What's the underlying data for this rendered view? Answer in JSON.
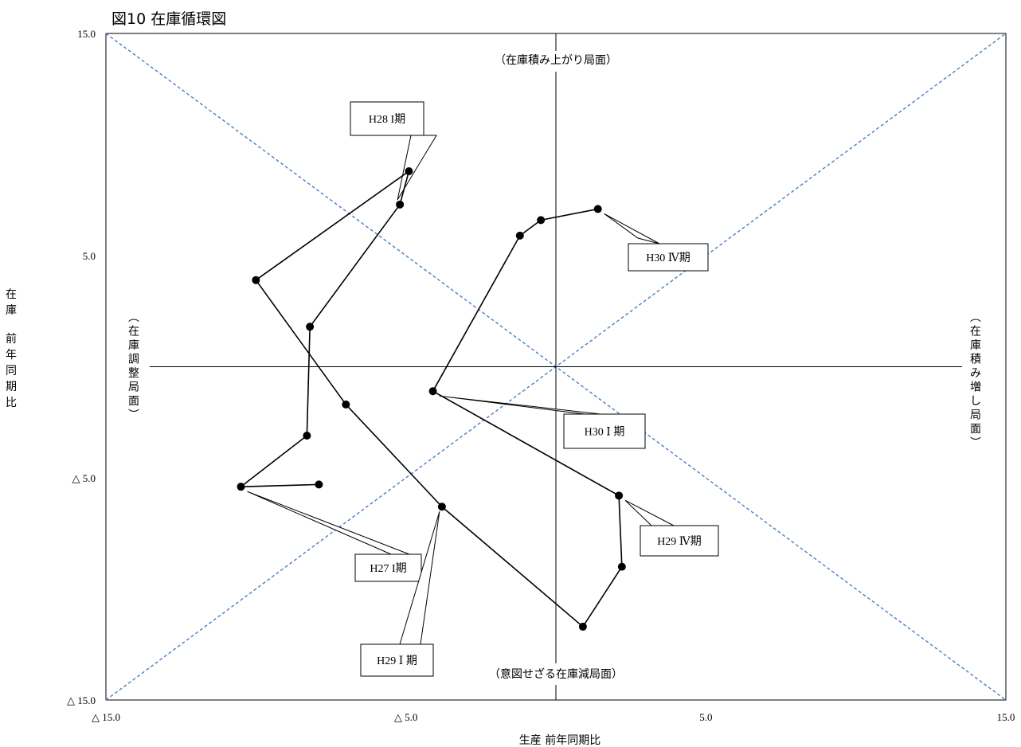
{
  "chart_data": {
    "type": "scatter",
    "title": "図10 在庫循環図",
    "xlabel": "生産 前年同期比",
    "ylabel": "在庫 前年同期比",
    "xlim": [
      -15,
      15
    ],
    "ylim": [
      -15,
      15
    ],
    "x_ticks": [
      "△ 15.0",
      "△ 5.0",
      "5.0",
      "15.0"
    ],
    "y_ticks": [
      "15.0",
      "5.0",
      "△ 5.0",
      "△ 15.0"
    ],
    "grid": false,
    "guides": [
      "diagonal y=x",
      "diagonal y=-x",
      "axis x=0",
      "axis y=0"
    ],
    "series": [
      {
        "points": [
          {
            "x": -7.9,
            "y": -5.3
          },
          {
            "x": -10.5,
            "y": -5.4
          },
          {
            "x": -8.3,
            "y": -3.1
          },
          {
            "x": -8.2,
            "y": 1.8
          },
          {
            "x": -5.2,
            "y": 7.3
          },
          {
            "x": -4.9,
            "y": 8.8
          },
          {
            "x": -10.0,
            "y": 3.9
          },
          {
            "x": -7.0,
            "y": -1.7
          },
          {
            "x": -3.8,
            "y": -6.3
          },
          {
            "x": 0.9,
            "y": -11.7
          },
          {
            "x": 2.2,
            "y": -9.0
          },
          {
            "x": 2.1,
            "y": -5.8
          },
          {
            "x": -4.1,
            "y": -1.1
          },
          {
            "x": -1.2,
            "y": 5.9
          },
          {
            "x": -0.5,
            "y": 6.6
          },
          {
            "x": 1.4,
            "y": 7.1
          }
        ]
      }
    ],
    "zones": {
      "top": "（在庫積み上がり局面）",
      "bottom": "（意図せざる在庫減局面）",
      "left": "（在庫調整局面）",
      "right": "（在庫積み増し局面）"
    },
    "callouts": [
      {
        "text": "H28 I期",
        "point": 4
      },
      {
        "text": "H30 Ⅳ期",
        "point": 15
      },
      {
        "text": "H30 Ⅰ 期",
        "point": 12
      },
      {
        "text": "H29 Ⅳ期",
        "point": 11
      },
      {
        "text": "H27 I期",
        "point": 1
      },
      {
        "text": "H29 Ⅰ 期",
        "point": 8
      }
    ],
    "colors": {
      "line": "#000000",
      "marker": "#000000",
      "diagonal": "#4a7ec0"
    }
  }
}
